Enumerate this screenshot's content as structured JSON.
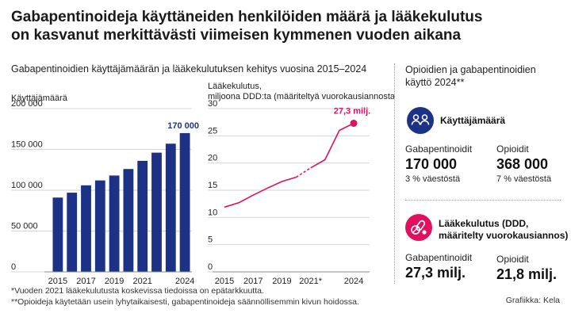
{
  "title_lines": [
    "Gabapentinoideja käyttäneiden henkilöiden määrä ja lääkekulutus",
    "on kasvanut merkittävästi viimeisen kymmenen vuoden aikana"
  ],
  "subtitle": "Gabapentinoidien käyttäjämäärän ja lääkekulutuksen kehitys vuosina 2015–2024",
  "colors": {
    "navy": "#1c3286",
    "pink": "#e0115f",
    "grid": "#d4d4d4",
    "text": "#222222"
  },
  "chart_data": [
    {
      "type": "bar",
      "ylabel": "Käyttäjämäärä",
      "categories": [
        "2015",
        "2016",
        "2017",
        "2018",
        "2019",
        "2020",
        "2021",
        "2022",
        "2023",
        "2024"
      ],
      "values": [
        91000,
        97000,
        106000,
        112000,
        118000,
        126000,
        136000,
        146000,
        157000,
        170000
      ],
      "ylim": [
        0,
        200000
      ],
      "yticks": [
        0,
        50000,
        100000,
        150000,
        200000
      ],
      "ytick_labels": [
        "0",
        "50 000",
        "100 000",
        "150 000",
        "200 000"
      ],
      "xtick_labels": [
        "2015",
        "2017",
        "2019",
        "2021",
        "2024"
      ],
      "xtick_years": [
        2015,
        2017,
        2019,
        2021,
        2024
      ],
      "annotation": "170 000",
      "grid": true
    },
    {
      "type": "line",
      "ylabel_lines": [
        "Lääkekulutus,",
        "miljoona DDD:ta (määriteltyä vuorokausiannosta)"
      ],
      "x": [
        2015,
        2016,
        2017,
        2018,
        2019,
        2020,
        2021,
        2022,
        2023,
        2024
      ],
      "values": [
        11.9,
        12.7,
        14.1,
        15.4,
        16.6,
        17.4,
        19.1,
        20.6,
        26.0,
        27.3
      ],
      "dashed_segment": [
        2020,
        2021
      ],
      "ylim": [
        0,
        30
      ],
      "yticks": [
        0,
        5,
        10,
        15,
        20,
        25,
        30
      ],
      "ytick_labels": [
        "0",
        "5",
        "10",
        "15",
        "20",
        "25",
        "30"
      ],
      "xtick_labels": [
        "2015",
        "2017",
        "2019",
        "2021*",
        "2024"
      ],
      "xtick_years": [
        2015,
        2017,
        2019,
        2021,
        2024
      ],
      "annotation": "27,3 milj.",
      "grid": true
    }
  ],
  "right": {
    "heading_lines": [
      "Opioidien ja gabapentinoidien",
      "käyttö 2024**"
    ],
    "users": {
      "icon": "people-icon",
      "title": "Käyttäjämäärä",
      "gaba_label": "Gabapentinoidit",
      "gaba_value": "170 000",
      "gaba_sub": "3 % väestöstä",
      "opio_label": "Opioidit",
      "opio_value": "368 000",
      "opio_sub": "7 % väestöstä"
    },
    "consumption": {
      "icon": "pills-icon",
      "title_lines": [
        "Lääkekulutus (DDD,",
        "määritelty vuorokausiannos)"
      ],
      "gaba_label": "Gabapentinoidit",
      "gaba_value": "27,3 milj.",
      "opio_label": "Opioidit",
      "opio_value": "21,8 milj."
    }
  },
  "footnotes": [
    "*Vuoden 2021 lääkekulutusta koskevissa tiedoissa on epätarkkuutta.",
    "**Opioideja käytetään usein lyhytaikaisesti, gabapentinoideja säännöllisemmin kivun hoidossa."
  ],
  "credit": "Grafiikka: Kela"
}
